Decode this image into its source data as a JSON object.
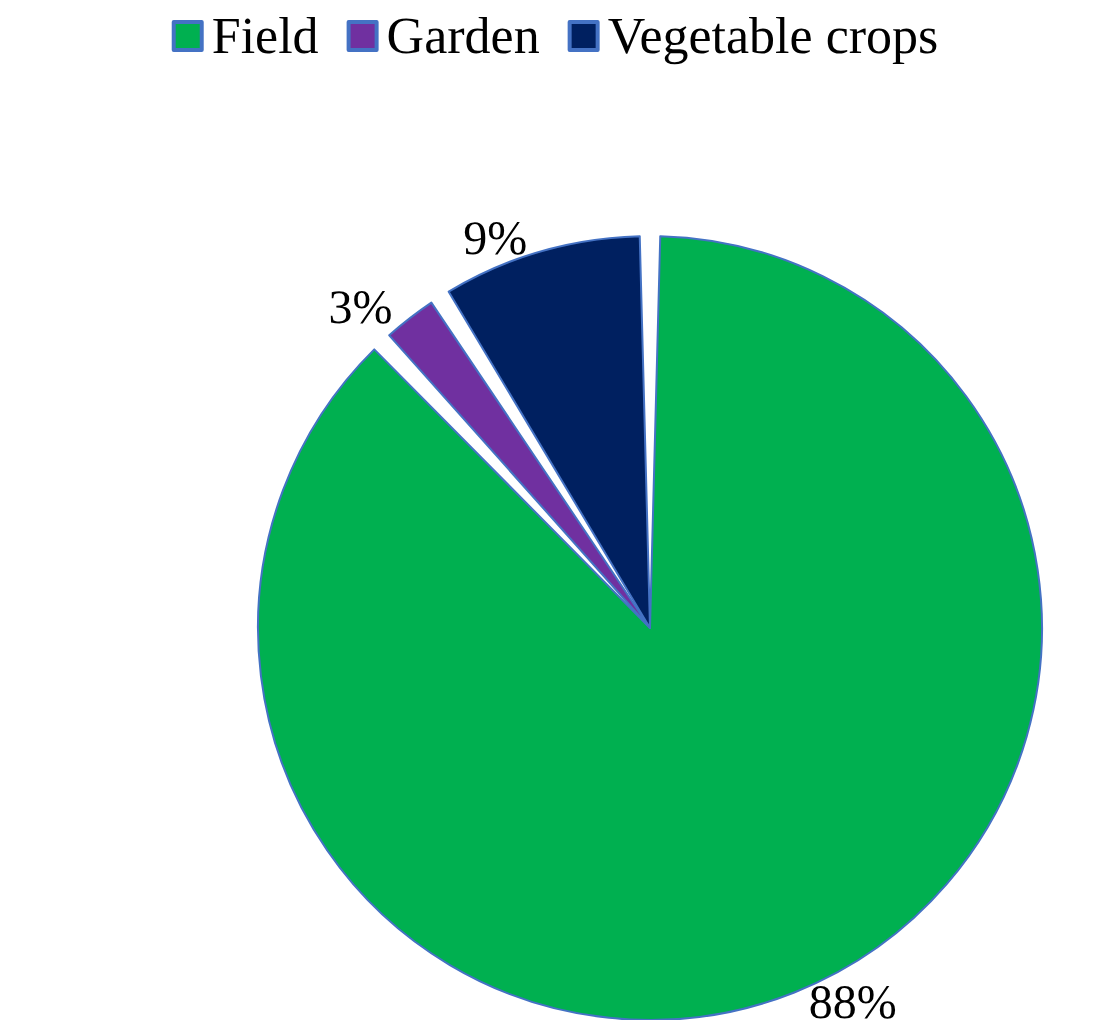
{
  "chart_data": {
    "type": "pie",
    "categories": [
      "Field",
      "Garden",
      "Vegetable crops"
    ],
    "values": [
      88,
      3,
      9
    ],
    "value_labels": [
      "88%",
      "3%",
      "9%"
    ],
    "colors": [
      "#00b050",
      "#7030a0",
      "#002060"
    ],
    "legend": "top"
  }
}
